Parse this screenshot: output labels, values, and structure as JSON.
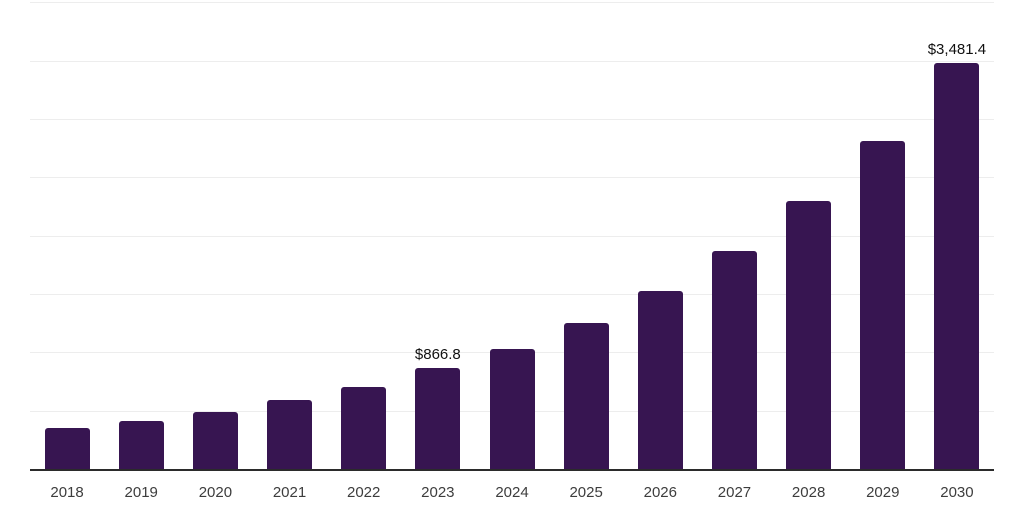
{
  "chart_data": {
    "type": "bar",
    "title": "",
    "xlabel": "",
    "ylabel": "",
    "categories": [
      "2018",
      "2019",
      "2020",
      "2021",
      "2022",
      "2023",
      "2024",
      "2025",
      "2026",
      "2027",
      "2028",
      "2029",
      "2030"
    ],
    "values": [
      350,
      410,
      485,
      590,
      705,
      866.8,
      1030,
      1255,
      1525,
      1870,
      2295,
      2810,
      3481.4
    ],
    "point_labels": [
      {
        "category": "2023",
        "text": "$866.8"
      },
      {
        "category": "2030",
        "text": "$3,481.4"
      }
    ],
    "ylim": [
      0,
      4000
    ],
    "gridline_step": 500,
    "grid": true,
    "y_axis_tick_labels_visible": false,
    "legend_position": "none",
    "bar_color": "#371551",
    "axis_color": "#2b2b2b",
    "gridline_color": "#ededed",
    "tick_label_color": "#3d3d3d",
    "point_label_color": "#111111",
    "background_color": "#ffffff"
  }
}
